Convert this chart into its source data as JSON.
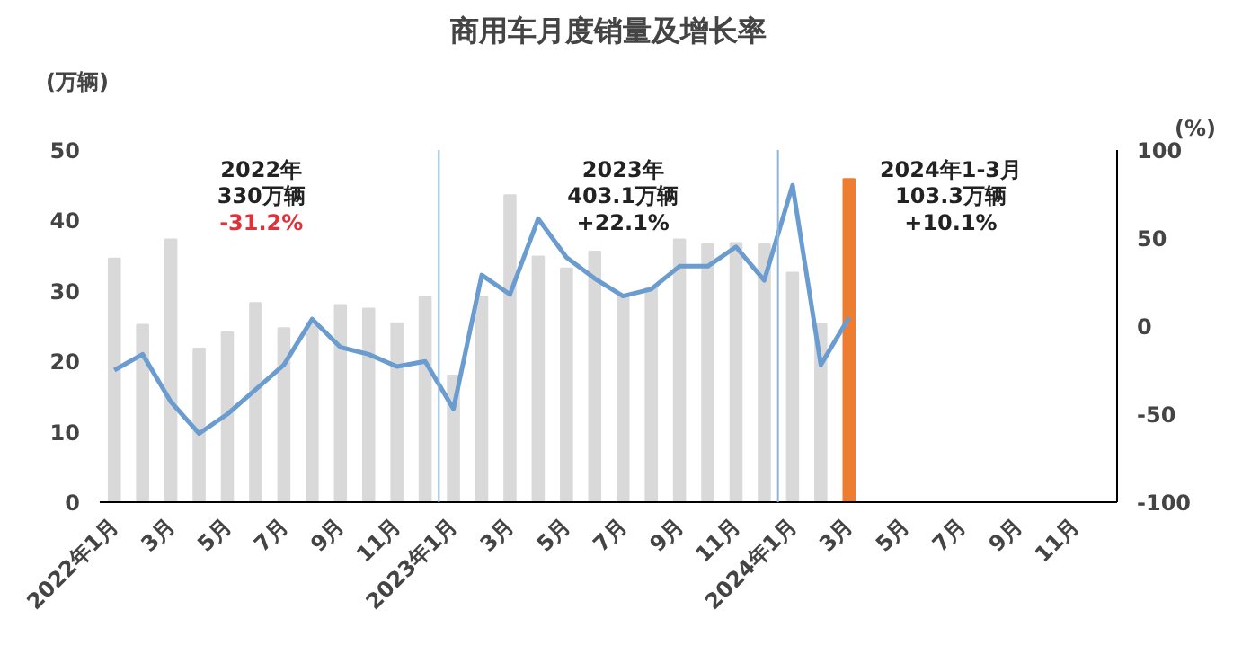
{
  "chart_data": {
    "type": "bar",
    "title": "商用车月度销量及增长率",
    "ylabel": "(万辆)",
    "y2label": "(%)",
    "x": [
      "2022-01",
      "2022-02",
      "2022-03",
      "2022-04",
      "2022-05",
      "2022-06",
      "2022-07",
      "2022-08",
      "2022-09",
      "2022-10",
      "2022-11",
      "2022-12",
      "2023-01",
      "2023-02",
      "2023-03",
      "2023-04",
      "2023-05",
      "2023-06",
      "2023-07",
      "2023-08",
      "2023-09",
      "2023-10",
      "2023-11",
      "2023-12",
      "2024-01",
      "2024-02",
      "2024-03"
    ],
    "series": [
      {
        "colors": [
          "#d9d9d9",
          "#d9d9d9",
          "#d9d9d9",
          "#d9d9d9",
          "#d9d9d9",
          "#d9d9d9",
          "#d9d9d9",
          "#d9d9d9",
          "#d9d9d9",
          "#d9d9d9",
          "#d9d9d9",
          "#d9d9d9",
          "#d9d9d9",
          "#d9d9d9",
          "#d9d9d9",
          "#d9d9d9",
          "#d9d9d9",
          "#d9d9d9",
          "#d9d9d9",
          "#d9d9d9",
          "#d9d9d9",
          "#d9d9d9",
          "#d9d9d9",
          "#d9d9d9",
          "#d9d9d9",
          "#d9d9d9",
          "#ed7d31"
        ],
        "values": [
          34.6,
          25.2,
          37.3,
          21.8,
          24.1,
          28.3,
          24.7,
          25.5,
          28.0,
          27.5,
          25.4,
          29.2,
          18.0,
          29.2,
          43.6,
          34.9,
          33.2,
          35.6,
          29.5,
          30.5,
          37.3,
          36.6,
          36.8,
          36.6,
          32.6,
          25.3,
          45.9
        ]
      },
      {
        "type": "line",
        "axis": "y2",
        "color": "#6a9ccf",
        "values": [
          -25,
          -16,
          -43,
          -61,
          -50,
          -36,
          -22,
          4,
          -12,
          -16,
          -23,
          -20,
          -47,
          29,
          18,
          61,
          39,
          27,
          17,
          21,
          34,
          34,
          45,
          26,
          80,
          -22,
          5
        ]
      }
    ],
    "xlim": [
      "2021-12-16",
      "2024-12-16"
    ],
    "xticks": [
      {
        "value": "2022-01",
        "label": "2022年1月"
      },
      {
        "value": "2022-03",
        "label": "3月"
      },
      {
        "value": "2022-05",
        "label": "5月"
      },
      {
        "value": "2022-07",
        "label": "7月"
      },
      {
        "value": "2022-09",
        "label": "9月"
      },
      {
        "value": "2022-11",
        "label": "11月"
      },
      {
        "value": "2023-01",
        "label": "2023年1月"
      },
      {
        "value": "2023-03",
        "label": "3月"
      },
      {
        "value": "2023-05",
        "label": "5月"
      },
      {
        "value": "2023-07",
        "label": "7月"
      },
      {
        "value": "2023-09",
        "label": "9月"
      },
      {
        "value": "2023-11",
        "label": "11月"
      },
      {
        "value": "2024-01",
        "label": "2024年1月"
      },
      {
        "value": "2024-03",
        "label": "3月"
      },
      {
        "value": "2024-05",
        "label": "5月"
      },
      {
        "value": "2024-07",
        "label": "7月"
      },
      {
        "value": "2024-09",
        "label": "9月"
      },
      {
        "value": "2024-11",
        "label": "11月"
      }
    ],
    "ylim": [
      0,
      50
    ],
    "yticks": [
      0,
      10,
      20,
      30,
      40,
      50
    ],
    "y2lim": [
      -100,
      100
    ],
    "y2ticks": [
      -100,
      -50,
      0,
      50,
      100
    ],
    "ref_lines": [
      {
        "axis": "x",
        "value": "2022-12-16",
        "color": "#8fb4dc"
      },
      {
        "axis": "x",
        "value": "2023-12-16",
        "color": "#8fb4dc"
      }
    ],
    "annotations": [
      "2022年",
      "330万辆",
      "-31.2%",
      "2023年",
      "403.1万辆",
      "+22.1%",
      "2024年1-3月",
      "103.3万辆",
      "+10.1%"
    ],
    "grid": false,
    "line_style": "solid",
    "marker": "none"
  }
}
